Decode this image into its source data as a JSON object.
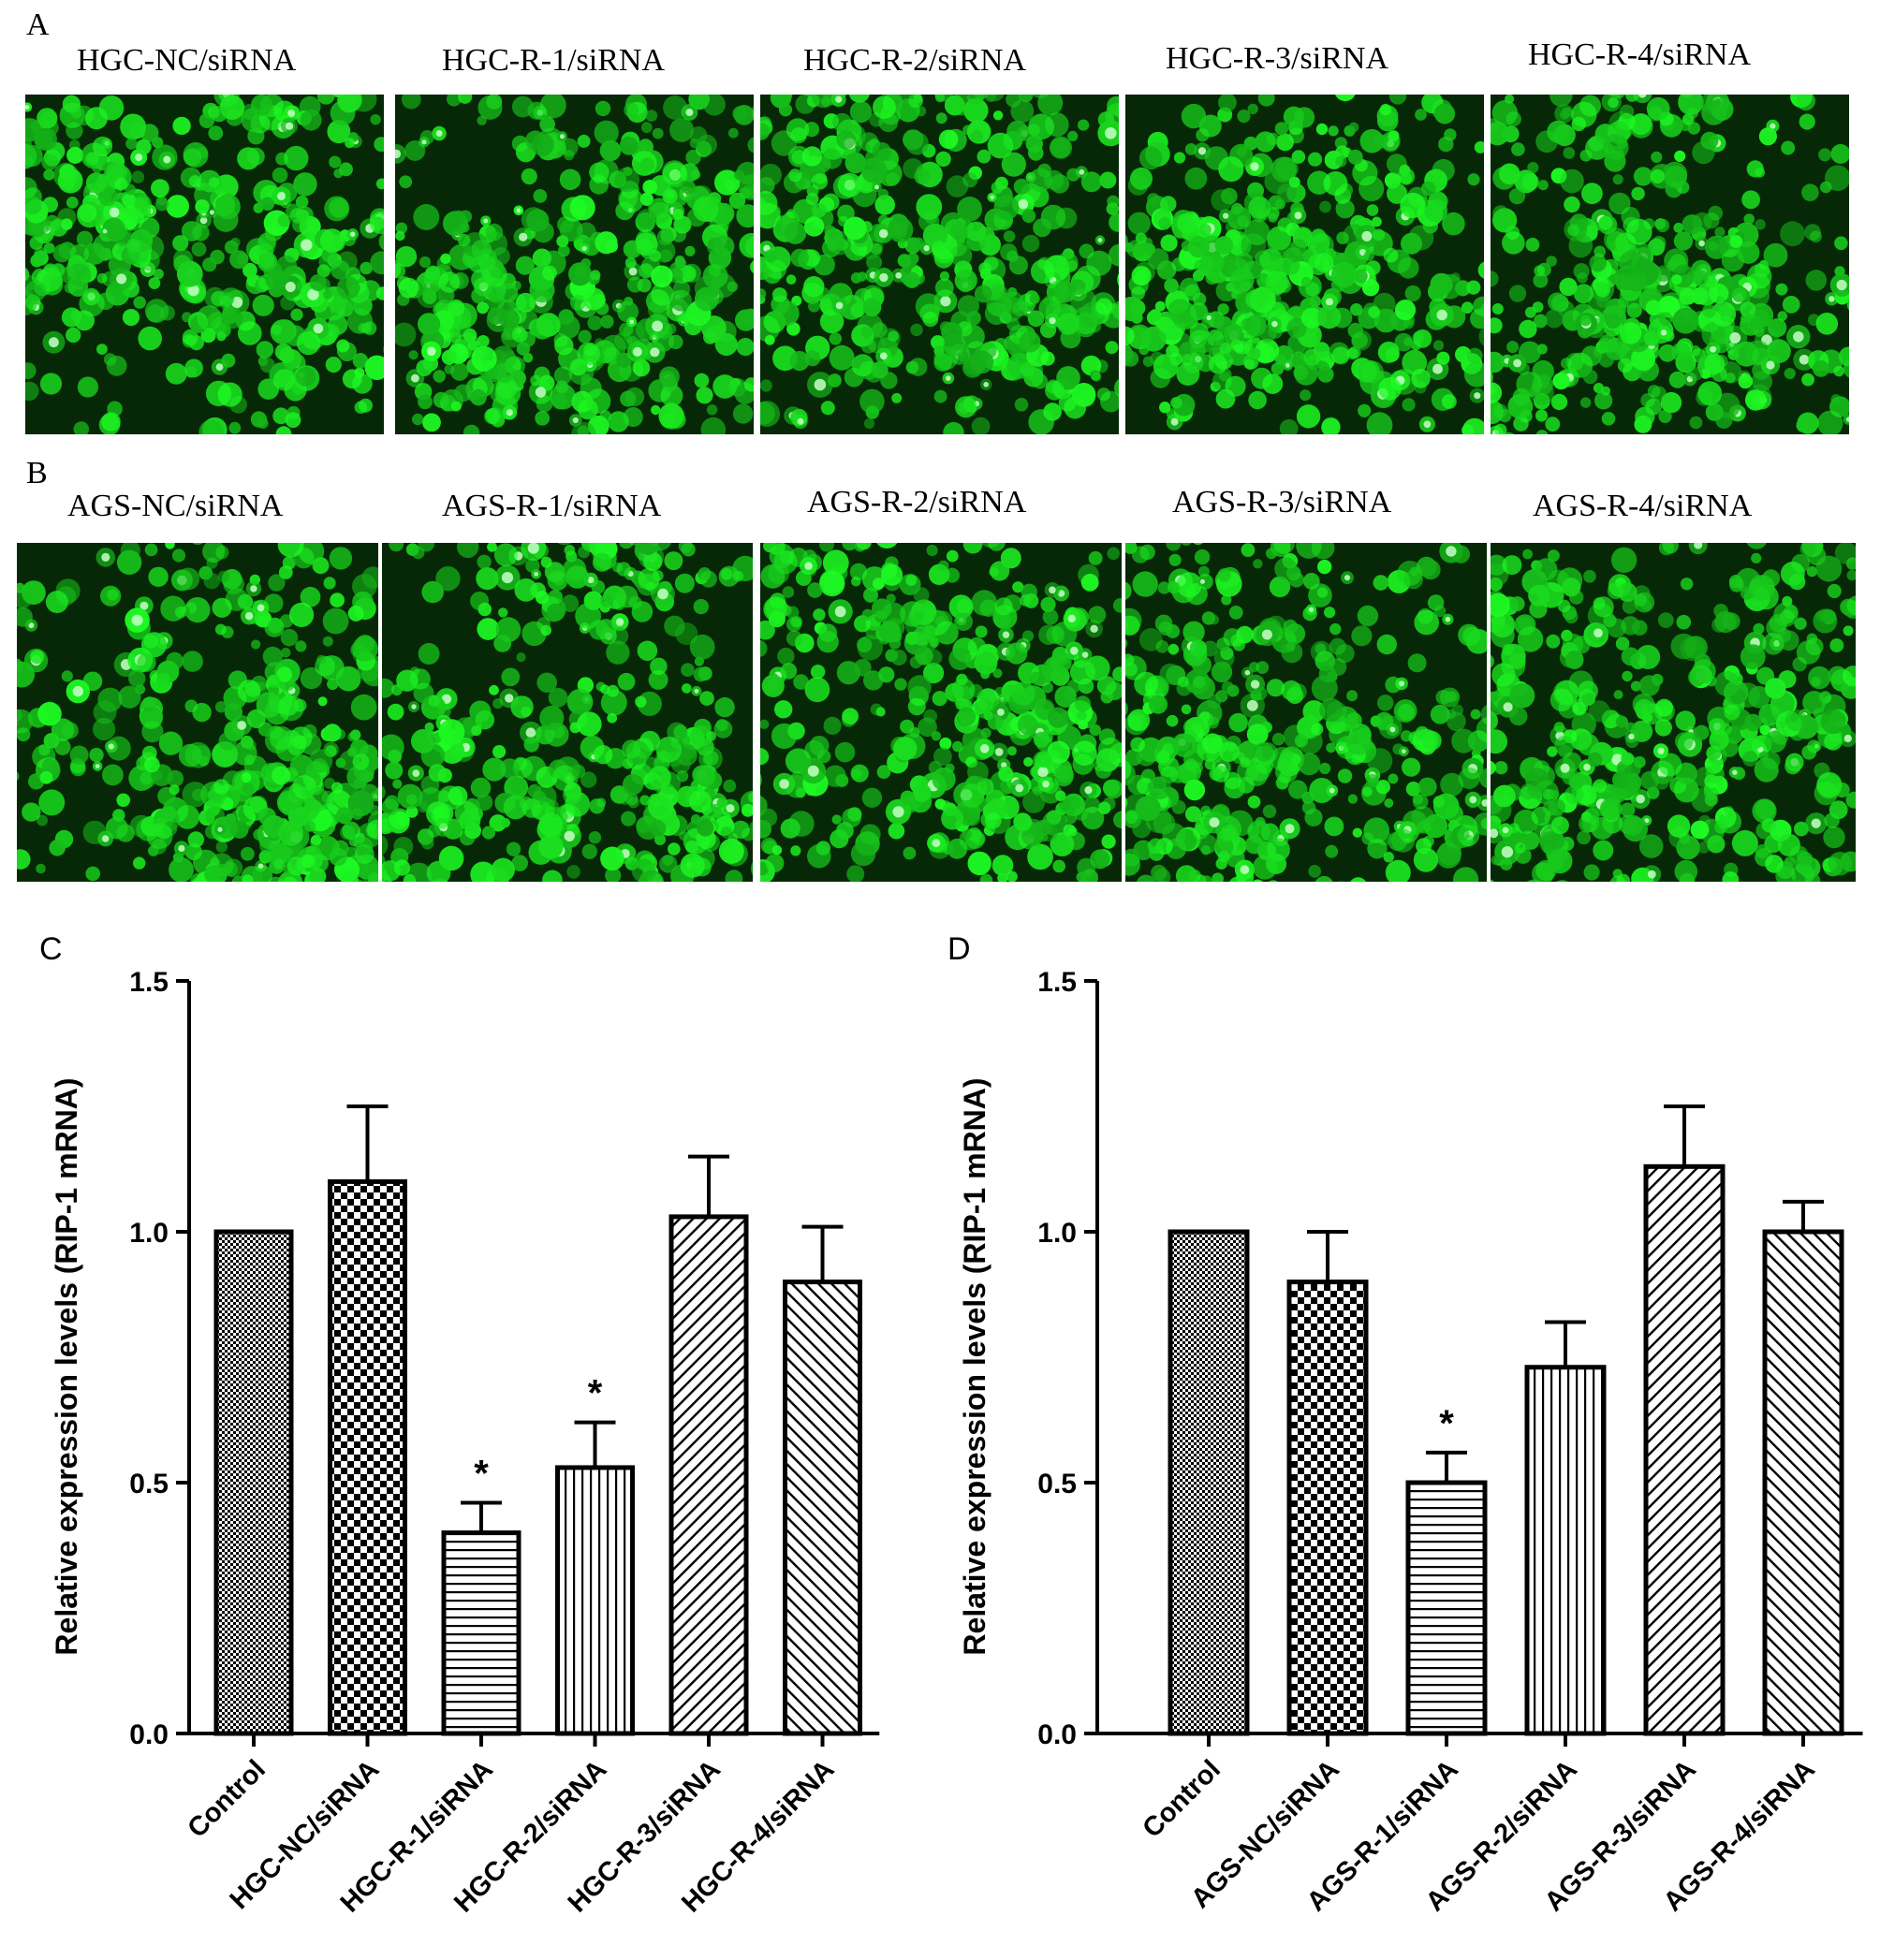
{
  "panels": {
    "A": {
      "letter": "A",
      "captions": [
        "HGC-NC/siRNA",
        "HGC-R-1/siRNA",
        "HGC-R-2/siRNA",
        "HGC-R-3/siRNA",
        "HGC-R-4/siRNA"
      ]
    },
    "B": {
      "letter": "B",
      "captions": [
        "AGS-NC/siRNA",
        "AGS-R-1/siRNA",
        "AGS-R-2/siRNA",
        "AGS-R-3/siRNA",
        "AGS-R-4/siRNA"
      ]
    }
  },
  "colors": {
    "fluorescence": "#22e02a",
    "background": "#062806",
    "ink": "#000000"
  },
  "chart_data": [
    {
      "panel_letter": "C",
      "type": "bar",
      "title": "",
      "xlabel": "",
      "ylabel": "Relative expression levels (RIP-1 mRNA)",
      "ylim": [
        0,
        1.5
      ],
      "yticks": [
        "0.0",
        "0.5",
        "1.0",
        "1.5"
      ],
      "categories": [
        "Control",
        "HGC-NC/siRNA",
        "HGC-R-1/siRNA",
        "HGC-R-2/siRNA",
        "HGC-R-3/siRNA",
        "HGC-R-4/siRNA"
      ],
      "values": [
        1.0,
        1.1,
        0.4,
        0.53,
        1.03,
        0.9
      ],
      "errors": [
        0,
        0.15,
        0.06,
        0.09,
        0.12,
        0.11
      ],
      "significance": [
        "",
        "",
        "*",
        "*",
        "",
        ""
      ],
      "patterns": [
        "fine-grid",
        "checker",
        "horizontal",
        "vertical",
        "diag-up",
        "diag-down"
      ],
      "grid": false,
      "legend": "none"
    },
    {
      "panel_letter": "D",
      "type": "bar",
      "title": "",
      "xlabel": "",
      "ylabel": "Relative expression levels (RIP-1 mRNA)",
      "ylim": [
        0,
        1.5
      ],
      "yticks": [
        "0.0",
        "0.5",
        "1.0",
        "1.5"
      ],
      "categories": [
        "Control",
        "AGS-NC/siRNA",
        "AGS-R-1/siRNA",
        "AGS-R-2/siRNA",
        "AGS-R-3/siRNA",
        "AGS-R-4/siRNA"
      ],
      "values": [
        1.0,
        0.9,
        0.5,
        0.73,
        1.13,
        1.0
      ],
      "errors": [
        0,
        0.1,
        0.06,
        0.09,
        0.12,
        0.06
      ],
      "significance": [
        "",
        "",
        "*",
        "",
        "",
        ""
      ],
      "patterns": [
        "fine-grid",
        "checker",
        "horizontal",
        "vertical",
        "diag-up",
        "diag-down"
      ],
      "grid": false,
      "legend": "none"
    }
  ]
}
